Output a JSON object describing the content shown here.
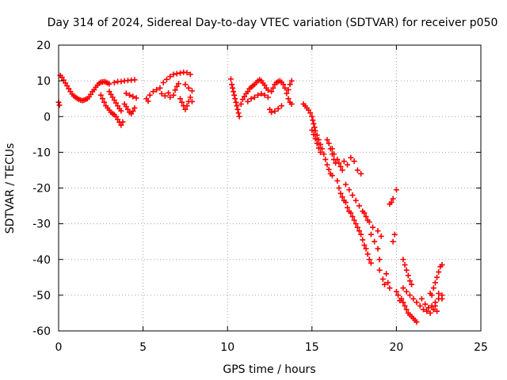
{
  "chart_data": {
    "type": "scatter",
    "title": "Day 314 of 2024, Sidereal Day-to-day VTEC variation (SDTVAR) for receiver p050",
    "xlabel": "GPS time / hours",
    "ylabel": "SDTVAR / TECUs",
    "xlim": [
      0,
      25
    ],
    "ylim": [
      -60,
      20
    ],
    "xticks": [
      0,
      5,
      10,
      15,
      20,
      25
    ],
    "yticks": [
      -60,
      -50,
      -40,
      -30,
      -20,
      -10,
      0,
      10,
      20
    ],
    "grid": true,
    "marker": "+",
    "color": "#ff0000",
    "series": [
      {
        "name": "SDTVAR",
        "points": [
          [
            0.0,
            4.0
          ],
          [
            0.05,
            3.2
          ],
          [
            0.1,
            11.5
          ],
          [
            0.2,
            11.0
          ],
          [
            0.3,
            10.2
          ],
          [
            0.4,
            9.4
          ],
          [
            0.5,
            8.6
          ],
          [
            0.6,
            7.8
          ],
          [
            0.7,
            7.0
          ],
          [
            0.8,
            6.3
          ],
          [
            0.9,
            5.8
          ],
          [
            1.0,
            5.4
          ],
          [
            1.1,
            5.1
          ],
          [
            1.2,
            4.8
          ],
          [
            1.3,
            4.6
          ],
          [
            1.4,
            4.5
          ],
          [
            1.5,
            4.6
          ],
          [
            1.6,
            4.8
          ],
          [
            1.7,
            5.0
          ],
          [
            1.8,
            5.5
          ],
          [
            1.9,
            6.2
          ],
          [
            2.0,
            7.0
          ],
          [
            2.1,
            7.5
          ],
          [
            2.2,
            8.2
          ],
          [
            2.3,
            8.8
          ],
          [
            2.4,
            9.3
          ],
          [
            2.5,
            9.6
          ],
          [
            2.6,
            9.7
          ],
          [
            2.7,
            9.8
          ],
          [
            2.8,
            9.6
          ],
          [
            2.9,
            9.4
          ],
          [
            3.0,
            9.1
          ],
          [
            2.5,
            6.0
          ],
          [
            2.6,
            5.0
          ],
          [
            2.7,
            4.0
          ],
          [
            2.8,
            3.0
          ],
          [
            2.9,
            2.4
          ],
          [
            3.0,
            1.8
          ],
          [
            3.1,
            1.2
          ],
          [
            3.2,
            0.8
          ],
          [
            3.3,
            0.5
          ],
          [
            3.4,
            0.0
          ],
          [
            3.5,
            -0.8
          ],
          [
            3.6,
            -1.6
          ],
          [
            3.7,
            -2.4
          ],
          [
            3.8,
            -1.5
          ],
          [
            3.0,
            7.0
          ],
          [
            3.1,
            6.2
          ],
          [
            3.2,
            5.4
          ],
          [
            3.3,
            4.6
          ],
          [
            3.4,
            3.8
          ],
          [
            3.5,
            3.0
          ],
          [
            3.6,
            2.2
          ],
          [
            3.7,
            1.6
          ],
          [
            3.3,
            9.5
          ],
          [
            3.5,
            9.8
          ],
          [
            3.7,
            9.8
          ],
          [
            3.9,
            10.0
          ],
          [
            4.1,
            10.1
          ],
          [
            4.3,
            10.2
          ],
          [
            4.5,
            10.3
          ],
          [
            3.9,
            3.5
          ],
          [
            4.0,
            2.8
          ],
          [
            4.1,
            2.0
          ],
          [
            4.2,
            1.2
          ],
          [
            4.3,
            0.8
          ],
          [
            4.4,
            1.5
          ],
          [
            4.5,
            2.4
          ],
          [
            4.0,
            6.5
          ],
          [
            4.2,
            6.0
          ],
          [
            4.4,
            5.6
          ],
          [
            4.6,
            5.2
          ],
          [
            5.2,
            5.0
          ],
          [
            5.3,
            4.3
          ],
          [
            5.4,
            6.0
          ],
          [
            5.6,
            7.0
          ],
          [
            5.8,
            7.5
          ],
          [
            6.0,
            8.0
          ],
          [
            6.1,
            6.4
          ],
          [
            6.3,
            5.8
          ],
          [
            6.5,
            6.6
          ],
          [
            6.6,
            5.4
          ],
          [
            6.8,
            6.0
          ],
          [
            6.9,
            7.4
          ],
          [
            7.0,
            8.4
          ],
          [
            7.1,
            9.2
          ],
          [
            6.2,
            9.5
          ],
          [
            6.4,
            10.4
          ],
          [
            6.6,
            11.2
          ],
          [
            6.8,
            11.8
          ],
          [
            7.0,
            12.0
          ],
          [
            7.2,
            12.2
          ],
          [
            7.4,
            12.4
          ],
          [
            7.6,
            12.3
          ],
          [
            7.8,
            11.8
          ],
          [
            7.2,
            5.0
          ],
          [
            7.3,
            4.0
          ],
          [
            7.4,
            3.0
          ],
          [
            7.5,
            2.0
          ],
          [
            7.6,
            3.0
          ],
          [
            7.7,
            4.2
          ],
          [
            7.8,
            5.4
          ],
          [
            7.9,
            4.2
          ],
          [
            7.5,
            9.0
          ],
          [
            7.7,
            8.0
          ],
          [
            7.9,
            7.2
          ],
          [
            10.2,
            10.5
          ],
          [
            10.25,
            9.0
          ],
          [
            10.3,
            8.0
          ],
          [
            10.35,
            7.0
          ],
          [
            10.4,
            6.0
          ],
          [
            10.45,
            5.0
          ],
          [
            10.5,
            4.0
          ],
          [
            10.55,
            3.0
          ],
          [
            10.6,
            2.0
          ],
          [
            10.65,
            1.0
          ],
          [
            10.7,
            0.0
          ],
          [
            10.8,
            3.5
          ],
          [
            10.9,
            4.8
          ],
          [
            11.0,
            5.6
          ],
          [
            11.1,
            6.4
          ],
          [
            11.2,
            7.0
          ],
          [
            11.3,
            7.8
          ],
          [
            11.4,
            8.2
          ],
          [
            11.5,
            8.6
          ],
          [
            11.6,
            9.0
          ],
          [
            11.7,
            9.5
          ],
          [
            11.8,
            10.0
          ],
          [
            11.9,
            10.3
          ],
          [
            12.0,
            10.0
          ],
          [
            12.1,
            9.4
          ],
          [
            12.2,
            8.8
          ],
          [
            12.3,
            8.0
          ],
          [
            12.4,
            7.4
          ],
          [
            11.2,
            4.2
          ],
          [
            11.4,
            5.0
          ],
          [
            11.6,
            5.4
          ],
          [
            11.8,
            6.0
          ],
          [
            12.0,
            6.4
          ],
          [
            12.2,
            6.0
          ],
          [
            12.4,
            5.4
          ],
          [
            12.6,
            7.0
          ],
          [
            12.7,
            8.0
          ],
          [
            12.8,
            9.0
          ],
          [
            12.9,
            9.5
          ],
          [
            13.0,
            9.8
          ],
          [
            13.1,
            10.0
          ],
          [
            13.2,
            9.6
          ],
          [
            13.3,
            9.0
          ],
          [
            13.4,
            8.0
          ],
          [
            13.5,
            6.5
          ],
          [
            13.6,
            5.0
          ],
          [
            13.7,
            4.0
          ],
          [
            13.8,
            3.5
          ],
          [
            13.6,
            7.5
          ],
          [
            13.7,
            9.0
          ],
          [
            13.8,
            10.0
          ],
          [
            12.5,
            2.0
          ],
          [
            12.6,
            1.2
          ],
          [
            12.8,
            1.5
          ],
          [
            13.0,
            2.2
          ],
          [
            13.2,
            3.0
          ],
          [
            14.5,
            3.5
          ],
          [
            14.6,
            3.0
          ],
          [
            14.7,
            2.4
          ],
          [
            14.8,
            1.8
          ],
          [
            14.9,
            1.0
          ],
          [
            15.0,
            0.0
          ],
          [
            15.05,
            -1.0
          ],
          [
            15.1,
            -2.0
          ],
          [
            15.15,
            -3.0
          ],
          [
            15.2,
            -4.0
          ],
          [
            15.3,
            -5.2
          ],
          [
            15.4,
            -6.5
          ],
          [
            15.5,
            -7.8
          ],
          [
            15.6,
            -9.0
          ],
          [
            15.7,
            -10.5
          ],
          [
            15.8,
            -12.0
          ],
          [
            15.9,
            -13.5
          ],
          [
            16.0,
            -14.8
          ],
          [
            16.1,
            -16.0
          ],
          [
            16.2,
            -16.5
          ],
          [
            15.0,
            -3.8
          ],
          [
            15.1,
            -5.0
          ],
          [
            15.2,
            -6.2
          ],
          [
            15.3,
            -7.5
          ],
          [
            15.4,
            -8.8
          ],
          [
            15.5,
            -10.0
          ],
          [
            15.9,
            -6.5
          ],
          [
            16.0,
            -7.5
          ],
          [
            16.1,
            -9.0
          ],
          [
            16.2,
            -10.5
          ],
          [
            16.3,
            -12.0
          ],
          [
            16.4,
            -13.0
          ],
          [
            16.2,
            -9.0
          ],
          [
            16.3,
            -10.5
          ],
          [
            16.5,
            -12.0
          ],
          [
            16.6,
            -13.0
          ],
          [
            16.7,
            -14.0
          ],
          [
            16.8,
            -15.0
          ],
          [
            16.5,
            -18.0
          ],
          [
            16.6,
            -20.0
          ],
          [
            16.7,
            -21.5
          ],
          [
            16.8,
            -22.5
          ],
          [
            16.9,
            -23.5
          ],
          [
            17.0,
            -24.0
          ],
          [
            17.1,
            -25.5
          ],
          [
            17.2,
            -26.5
          ],
          [
            17.3,
            -27.0
          ],
          [
            17.4,
            -28.0
          ],
          [
            17.5,
            -29.0
          ],
          [
            17.6,
            -30.0
          ],
          [
            17.7,
            -31.0
          ],
          [
            17.8,
            -32.0
          ],
          [
            17.9,
            -33.0
          ],
          [
            18.0,
            -34.5
          ],
          [
            18.1,
            -36.0
          ],
          [
            18.2,
            -37.0
          ],
          [
            18.3,
            -38.5
          ],
          [
            18.4,
            -40.0
          ],
          [
            18.5,
            -41.0
          ],
          [
            17.0,
            -19.0
          ],
          [
            17.2,
            -20.5
          ],
          [
            17.4,
            -22.0
          ],
          [
            17.6,
            -23.5
          ],
          [
            17.8,
            -25.0
          ],
          [
            18.0,
            -26.5
          ],
          [
            18.2,
            -28.0
          ],
          [
            18.4,
            -29.5
          ],
          [
            18.6,
            -31.0
          ],
          [
            16.9,
            -12.5
          ],
          [
            17.1,
            -13.5
          ],
          [
            17.3,
            -11.5
          ],
          [
            17.5,
            -12.5
          ],
          [
            17.7,
            -15.0
          ],
          [
            17.9,
            -16.0
          ],
          [
            18.1,
            -27.0
          ],
          [
            18.3,
            -29.0
          ],
          [
            18.5,
            -33.0
          ],
          [
            18.7,
            -35.0
          ],
          [
            18.9,
            -37.0
          ],
          [
            19.0,
            -40.0
          ],
          [
            18.9,
            -32.0
          ],
          [
            19.1,
            -33.5
          ],
          [
            19.0,
            -43.0
          ],
          [
            19.2,
            -45.5
          ],
          [
            19.3,
            -47.0
          ],
          [
            19.5,
            -46.5
          ],
          [
            19.6,
            -48.0
          ],
          [
            19.4,
            -44.0
          ],
          [
            19.8,
            -35.0
          ],
          [
            19.9,
            -33.0
          ],
          [
            19.6,
            -24.5
          ],
          [
            19.7,
            -24.0
          ],
          [
            19.8,
            -23.0
          ],
          [
            20.0,
            -20.5
          ],
          [
            20.0,
            -49.0
          ],
          [
            20.1,
            -50.0
          ],
          [
            20.2,
            -51.5
          ],
          [
            20.3,
            -51.0
          ],
          [
            20.4,
            -52.0
          ],
          [
            20.5,
            -53.0
          ],
          [
            20.6,
            -54.0
          ],
          [
            20.7,
            -55.0
          ],
          [
            20.8,
            -55.5
          ],
          [
            20.9,
            -56.0
          ],
          [
            21.0,
            -56.5
          ],
          [
            21.1,
            -57.0
          ],
          [
            21.2,
            -57.5
          ],
          [
            20.4,
            -48.0
          ],
          [
            20.6,
            -49.0
          ],
          [
            20.8,
            -50.0
          ],
          [
            21.0,
            -51.0
          ],
          [
            21.2,
            -52.0
          ],
          [
            21.4,
            -53.0
          ],
          [
            21.6,
            -54.0
          ],
          [
            21.8,
            -54.5
          ],
          [
            22.0,
            -55.0
          ],
          [
            22.2,
            -54.0
          ],
          [
            22.3,
            -53.0
          ],
          [
            20.4,
            -40.0
          ],
          [
            20.5,
            -41.5
          ],
          [
            20.6,
            -43.0
          ],
          [
            20.7,
            -44.5
          ],
          [
            20.8,
            -46.0
          ],
          [
            20.9,
            -47.0
          ],
          [
            21.5,
            -51.0
          ],
          [
            21.7,
            -52.5
          ],
          [
            21.9,
            -53.5
          ],
          [
            22.1,
            -53.0
          ],
          [
            22.3,
            -52.0
          ],
          [
            22.5,
            -51.0
          ],
          [
            22.7,
            -50.0
          ],
          [
            22.4,
            -54.5
          ],
          [
            22.1,
            -50.0
          ],
          [
            22.2,
            -48.0
          ],
          [
            22.3,
            -46.5
          ],
          [
            22.4,
            -45.0
          ],
          [
            22.5,
            -43.5
          ],
          [
            22.6,
            -42.0
          ],
          [
            22.7,
            -41.5
          ],
          [
            22.0,
            -49.5
          ],
          [
            22.5,
            -49.5
          ],
          [
            22.7,
            -51.0
          ]
        ]
      }
    ]
  }
}
